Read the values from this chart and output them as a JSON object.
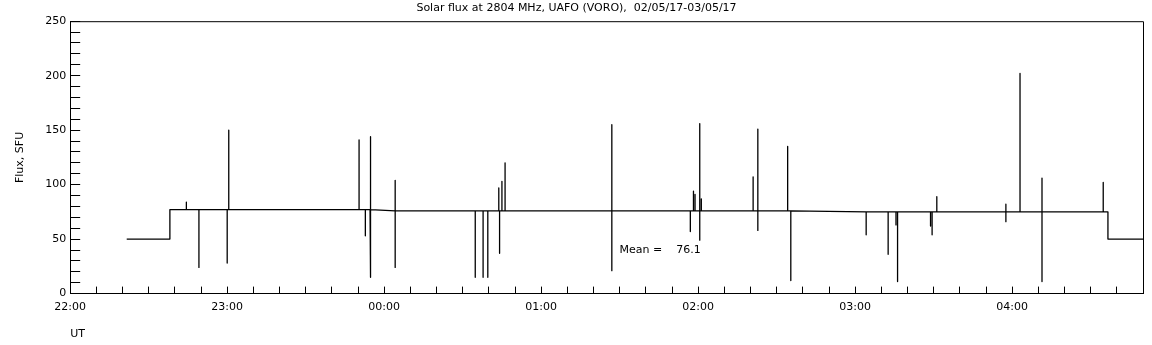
{
  "chart_data": {
    "type": "line",
    "title": "Solar flux at 2804 MHz, UAFO (VORO),  02/05/17-03/05/17",
    "xlabel": "UT",
    "ylabel": "Flux, SFU",
    "annotations": [
      "Mean =    76.1"
    ],
    "marker": "none",
    "line_style": "solid",
    "legend": false,
    "grid": false,
    "xlim": [
      "--05-02T22:00",
      "--05-03T04:50"
    ],
    "xticks": [
      {
        "value": "--05-02T22:00",
        "label": "22:00"
      },
      {
        "value": "--05-02T22:10",
        "label": null
      },
      {
        "value": "--05-02T22:20",
        "label": null
      },
      {
        "value": "--05-02T22:30",
        "label": null
      },
      {
        "value": "--05-02T22:40",
        "label": null
      },
      {
        "value": "--05-02T22:50",
        "label": null
      },
      {
        "value": "--05-02T23:00",
        "label": "23:00"
      },
      {
        "value": "--05-02T23:10",
        "label": null
      },
      {
        "value": "--05-02T23:20",
        "label": null
      },
      {
        "value": "--05-02T23:30",
        "label": null
      },
      {
        "value": "--05-02T23:40",
        "label": null
      },
      {
        "value": "--05-02T23:50",
        "label": null
      },
      {
        "value": "--05-03T00:00",
        "label": "00:00"
      },
      {
        "value": "--05-03T00:10",
        "label": null
      },
      {
        "value": "--05-03T00:20",
        "label": null
      },
      {
        "value": "--05-03T00:30",
        "label": null
      },
      {
        "value": "--05-03T00:40",
        "label": null
      },
      {
        "value": "--05-03T00:50",
        "label": null
      },
      {
        "value": "--05-03T01:00",
        "label": "01:00"
      },
      {
        "value": "--05-03T01:10",
        "label": null
      },
      {
        "value": "--05-03T01:20",
        "label": null
      },
      {
        "value": "--05-03T01:30",
        "label": null
      },
      {
        "value": "--05-03T01:40",
        "label": null
      },
      {
        "value": "--05-03T01:50",
        "label": null
      },
      {
        "value": "--05-03T02:00",
        "label": "02:00"
      },
      {
        "value": "--05-03T02:10",
        "label": null
      },
      {
        "value": "--05-03T02:20",
        "label": null
      },
      {
        "value": "--05-03T02:30",
        "label": null
      },
      {
        "value": "--05-03T02:40",
        "label": null
      },
      {
        "value": "--05-03T02:50",
        "label": null
      },
      {
        "value": "--05-03T03:00",
        "label": "03:00"
      },
      {
        "value": "--05-03T03:10",
        "label": null
      },
      {
        "value": "--05-03T03:20",
        "label": null
      },
      {
        "value": "--05-03T03:30",
        "label": null
      },
      {
        "value": "--05-03T03:40",
        "label": null
      },
      {
        "value": "--05-03T03:50",
        "label": null
      },
      {
        "value": "--05-03T04:00",
        "label": "04:00"
      },
      {
        "value": "--05-03T04:10",
        "label": null
      },
      {
        "value": "--05-03T04:20",
        "label": null
      },
      {
        "value": "--05-03T04:30",
        "label": null
      },
      {
        "value": "--05-03T04:40",
        "label": null
      }
    ],
    "ylim": [
      0,
      250
    ],
    "yticks": [
      0,
      {
        "value": 10,
        "label": null
      },
      {
        "value": 20,
        "label": null
      },
      {
        "value": 30,
        "label": null
      },
      {
        "value": 40,
        "label": null
      },
      50,
      {
        "value": 60,
        "label": null
      },
      {
        "value": 70,
        "label": null
      },
      {
        "value": 80,
        "label": null
      },
      {
        "value": 90,
        "label": null
      },
      100,
      {
        "value": 110,
        "label": null
      },
      {
        "value": 120,
        "label": null
      },
      {
        "value": 130,
        "label": null
      },
      {
        "value": 140,
        "label": null
      },
      150,
      {
        "value": 160,
        "label": null
      },
      {
        "value": 170,
        "label": null
      },
      {
        "value": 180,
        "label": null
      },
      {
        "value": 190,
        "label": null
      },
      200,
      {
        "value": 210,
        "label": null
      },
      {
        "value": 220,
        "label": null
      },
      {
        "value": 230,
        "label": null
      },
      {
        "value": 240,
        "label": null
      },
      250
    ],
    "series": [
      {
        "color": "#000000",
        "x": [
          "--05-02T22:21:36",
          "--05-02T22:38:06",
          "--05-02T22:38:06",
          "--05-02T22:44:24",
          "--05-02T22:44:24",
          "--05-02T22:44:24",
          "--05-02T22:49:12",
          "--05-02T22:49:12",
          "--05-02T22:49:12",
          "--05-02T23:00:00",
          "--05-02T23:00:00",
          "--05-02T23:00:00",
          "--05-02T23:00:36",
          "--05-02T23:00:36",
          "--05-02T23:00:36",
          "--05-02T23:50:24",
          "--05-02T23:50:24",
          "--05-02T23:50:24",
          "--05-02T23:52:48",
          "--05-02T23:52:48",
          "--05-02T23:52:48",
          "--05-02T23:54:36",
          "--05-02T23:54:36",
          "--05-02T23:54:36",
          "--05-02T23:54:54",
          "--05-02T23:54:54",
          "--05-02T23:54:54",
          "--05-03T00:04:12",
          "--05-03T00:04:12",
          "--05-03T00:04:12",
          "--05-03T00:04:12",
          "--05-03T00:34:48",
          "--05-03T00:34:48",
          "--05-03T00:34:48",
          "--05-03T00:37:48",
          "--05-03T00:37:48",
          "--05-03T00:37:48",
          "--05-03T00:39:36",
          "--05-03T00:39:36",
          "--05-03T00:39:36",
          "--05-03T00:43:48",
          "--05-03T00:43:48",
          "--05-03T00:43:48",
          "--05-03T00:44:06",
          "--05-03T00:44:06",
          "--05-03T00:44:06",
          "--05-03T00:45:00",
          "--05-03T00:45:00",
          "--05-03T00:45:00",
          "--05-03T00:46:12",
          "--05-03T00:46:12",
          "--05-03T00:46:12",
          "--05-03T01:27:00",
          "--05-03T01:27:00",
          "--05-03T01:27:00",
          "--05-03T01:27:00",
          "--05-03T01:57:00",
          "--05-03T01:57:00",
          "--05-03T01:57:00",
          "--05-03T01:58:12",
          "--05-03T01:58:12",
          "--05-03T01:58:12",
          "--05-03T01:58:48",
          "--05-03T01:58:48",
          "--05-03T01:58:48",
          "--05-03T02:00:36",
          "--05-03T02:00:36",
          "--05-03T02:00:36",
          "--05-03T02:00:36",
          "--05-03T02:01:12",
          "--05-03T02:01:12",
          "--05-03T02:01:12",
          "--05-03T02:21:00",
          "--05-03T02:21:00",
          "--05-03T02:21:00",
          "--05-03T02:22:48",
          "--05-03T02:22:48",
          "--05-03T02:22:48",
          "--05-03T02:22:48",
          "--05-03T02:34:12",
          "--05-03T02:34:12",
          "--05-03T02:34:12",
          "--05-03T02:35:24",
          "--05-03T02:35:24",
          "--05-03T02:35:24",
          "--05-03T03:04:12",
          "--05-03T03:04:12",
          "--05-03T03:04:12",
          "--05-03T03:12:36",
          "--05-03T03:12:36",
          "--05-03T03:12:36",
          "--05-03T03:15:36",
          "--05-03T03:15:36",
          "--05-03T03:15:36",
          "--05-03T03:16:12",
          "--05-03T03:16:12",
          "--05-03T03:16:12",
          "--05-03T03:28:48",
          "--05-03T03:28:48",
          "--05-03T03:28:48",
          "--05-03T03:29:24",
          "--05-03T03:29:24",
          "--05-03T03:29:24",
          "--05-03T03:31:12",
          "--05-03T03:31:12",
          "--05-03T03:31:12",
          "--05-03T03:57:36",
          "--05-03T03:57:36",
          "--05-03T03:57:36",
          "--05-03T03:57:36",
          "--05-03T04:03:00",
          "--05-03T04:03:00",
          "--05-03T04:03:00",
          "--05-03T04:11:24",
          "--05-03T04:11:24",
          "--05-03T04:11:24",
          "--05-03T04:11:24",
          "--05-03T04:34:48",
          "--05-03T04:34:48",
          "--05-03T04:34:48",
          "--05-03T04:36:36",
          "--05-03T04:36:36",
          "--05-03T04:50:00"
        ],
        "values": [
          50,
          50,
          77,
          77,
          84,
          77,
          77,
          24,
          77,
          77,
          28,
          77,
          77,
          150,
          77,
          77,
          141,
          77,
          77,
          53,
          77,
          77,
          144,
          77,
          77,
          15,
          77,
          76,
          104,
          24,
          76,
          76,
          15,
          76,
          76,
          15,
          76,
          76,
          15,
          76,
          76,
          97,
          76,
          76,
          37,
          76,
          76,
          103,
          76,
          76,
          120,
          76,
          76,
          155,
          21,
          76,
          76,
          57,
          76,
          76,
          94,
          76,
          76,
          91,
          76,
          76,
          156,
          49,
          76,
          76,
          87,
          76,
          76,
          107,
          76,
          76,
          151,
          58,
          76,
          76,
          135,
          76,
          76,
          12,
          76,
          75,
          54,
          75,
          75,
          36,
          75,
          75,
          63,
          75,
          75,
          11,
          75,
          75,
          62,
          75,
          75,
          54,
          75,
          75,
          89,
          75,
          75,
          82,
          66,
          75,
          75,
          202,
          75,
          75,
          106,
          11,
          75,
          75,
          102,
          75,
          75,
          50,
          50
        ]
      }
    ]
  }
}
